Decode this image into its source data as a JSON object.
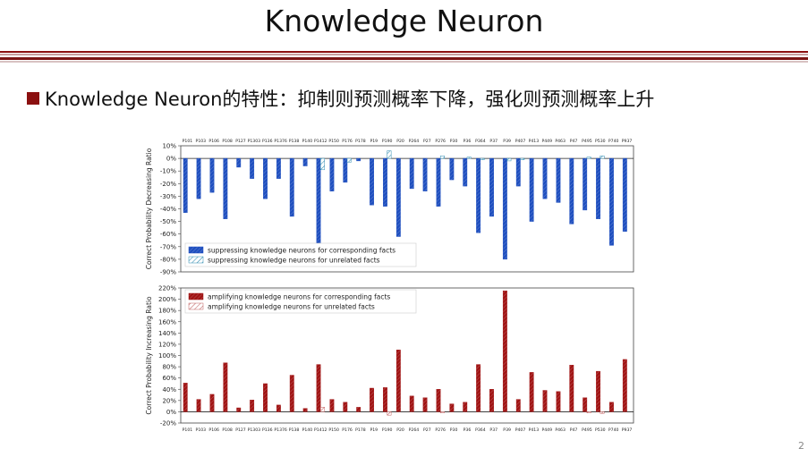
{
  "slide": {
    "title": "Knowledge Neuron",
    "bullet": "Knowledge Neuron的特性：抑制则预测概率下降，强化则预测概率上升",
    "page_number": "2",
    "accent_color": "#8b1010"
  },
  "chart_data": [
    {
      "type": "bar",
      "title": "",
      "xlabel": "",
      "ylabel": "Correct Probability Decreasing Ratio",
      "ylim": [
        -90,
        10
      ],
      "yticks": [
        10,
        0,
        -10,
        -20,
        -30,
        -40,
        -50,
        -60,
        -70,
        -80,
        -90
      ],
      "ytick_labels": [
        "10%",
        "0%",
        "-10%",
        "-20%",
        "-30%",
        "-40%",
        "-50%",
        "-60%",
        "-70%",
        "-80%",
        "-90%"
      ],
      "x_axis_position": "top",
      "legend_position": "bottom-left",
      "grid": false,
      "categories": [
        "P101",
        "P103",
        "P106",
        "P108",
        "P127",
        "P1303",
        "P136",
        "P1376",
        "P138",
        "P140",
        "P1412",
        "P150",
        "P176",
        "P178",
        "P19",
        "P190",
        "P20",
        "P264",
        "P27",
        "P276",
        "P30",
        "P36",
        "P364",
        "P37",
        "P39",
        "P407",
        "P413",
        "P449",
        "P463",
        "P47",
        "P495",
        "P530",
        "P740",
        "P937"
      ],
      "series": [
        {
          "name": "suppressing knowledge neurons for corresponding facts",
          "color": "#1f4fbf",
          "hatch": "dense",
          "values": [
            -43,
            -32,
            -27,
            -48,
            -7,
            -16,
            -32,
            -16,
            -46,
            -6,
            -70,
            -26,
            -19,
            -2,
            -37,
            -38,
            -62,
            -24,
            -26,
            -38,
            -17,
            -22,
            -59,
            -46,
            -80,
            -22,
            -50,
            -32,
            -35,
            -52,
            -41,
            -48,
            -69,
            -58
          ]
        },
        {
          "name": "suppressing knowledge neurons for unrelated facts",
          "color": "#2f8bb0",
          "hatch": "sparse",
          "values": [
            0,
            0,
            0,
            0,
            0,
            0,
            0,
            0,
            0,
            0,
            -9,
            0,
            -3,
            0,
            0,
            6,
            0,
            0,
            0,
            2,
            0,
            1,
            -1,
            0,
            -2,
            -1,
            0,
            0,
            0,
            0,
            1,
            2,
            0,
            0
          ]
        }
      ]
    },
    {
      "type": "bar",
      "title": "",
      "xlabel": "",
      "ylabel": "Correct Probability Increasing Ratio",
      "ylim": [
        -20,
        220
      ],
      "yticks": [
        220,
        200,
        180,
        160,
        140,
        120,
        100,
        80,
        60,
        40,
        20,
        0,
        -20
      ],
      "ytick_labels": [
        "220%",
        "200%",
        "180%",
        "160%",
        "140%",
        "120%",
        "100%",
        "80%",
        "60%",
        "40%",
        "20%",
        "0%",
        "-20%"
      ],
      "x_axis_position": "bottom",
      "legend_position": "top-left",
      "grid": false,
      "categories": [
        "P101",
        "P103",
        "P106",
        "P108",
        "P127",
        "P1303",
        "P136",
        "P1376",
        "P138",
        "P140",
        "P1412",
        "P150",
        "P176",
        "P178",
        "P19",
        "P190",
        "P20",
        "P264",
        "P27",
        "P276",
        "P30",
        "P36",
        "P364",
        "P37",
        "P39",
        "P407",
        "P413",
        "P449",
        "P463",
        "P47",
        "P495",
        "P530",
        "P740",
        "P937"
      ],
      "series": [
        {
          "name": "amplifying knowledge neurons for corresponding facts",
          "color": "#a01414",
          "hatch": "dense",
          "values": [
            51,
            22,
            31,
            87,
            7,
            21,
            50,
            12,
            65,
            6,
            84,
            22,
            17,
            8,
            42,
            43,
            110,
            28,
            25,
            40,
            14,
            17,
            84,
            40,
            215,
            22,
            70,
            38,
            36,
            83,
            25,
            72,
            17,
            93
          ]
        },
        {
          "name": "amplifying knowledge neurons for unrelated facts",
          "color": "#c06060",
          "hatch": "sparse",
          "values": [
            0,
            0,
            0,
            0,
            0,
            0,
            0,
            0,
            0,
            0,
            8,
            0,
            0,
            0,
            0,
            -6,
            0,
            0,
            0,
            -2,
            0,
            0,
            0,
            0,
            0,
            0,
            0,
            0,
            0,
            0,
            -2,
            -3,
            0,
            0
          ]
        }
      ]
    }
  ]
}
